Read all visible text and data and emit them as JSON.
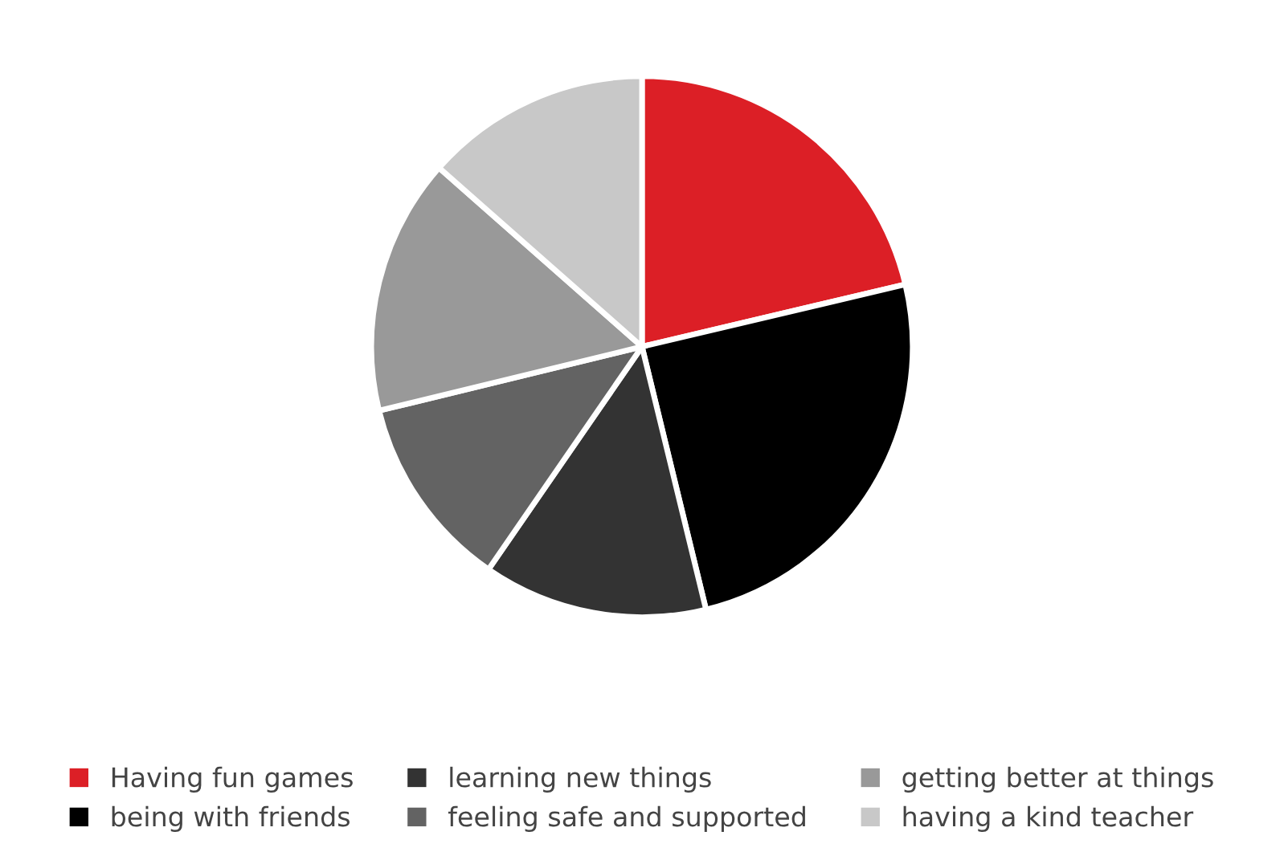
{
  "chart_data": {
    "type": "pie",
    "categories": [
      "Having fun games",
      "being with friends",
      "learning new things",
      "feeling safe and supported",
      "getting better at things",
      "having a kind teacher"
    ],
    "values": [
      21.3,
      24.9,
      13.4,
      11.6,
      15.3,
      13.5
    ],
    "colors": [
      "#dc1f26",
      "#000000",
      "#333333",
      "#636363",
      "#999999",
      "#c8c8c8"
    ],
    "legend": "bottom"
  }
}
